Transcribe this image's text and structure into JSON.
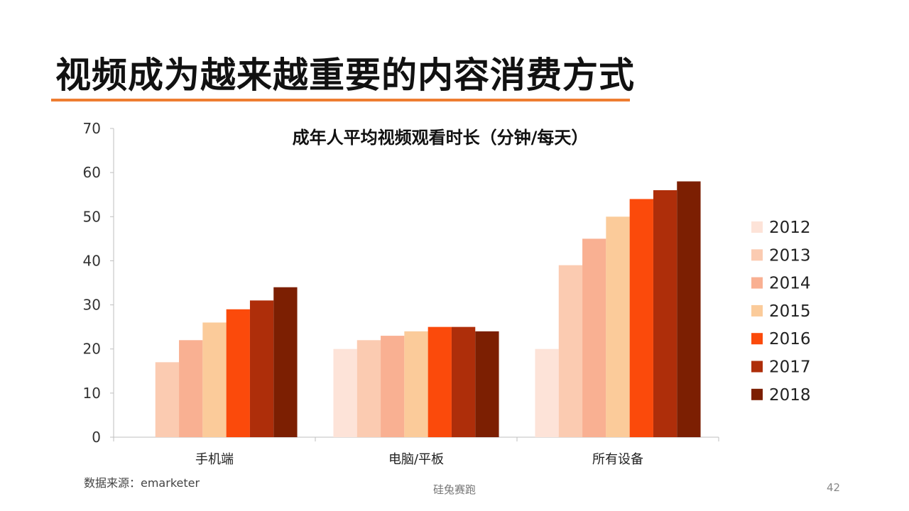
{
  "slide": {
    "title": "视频成为越来越重要的内容消费方式",
    "accent_color": "#ee7d31",
    "source": "数据来源：emarketer",
    "footer": "硅兔赛跑",
    "page_number": "42"
  },
  "chart_data": {
    "type": "bar",
    "title": "成年人平均视频观看时长（分钟/每天）",
    "categories": [
      "手机端",
      "电脑/平板",
      "所有设备"
    ],
    "series": [
      {
        "name": "2012",
        "color": "#fde3d8",
        "values": [
          0,
          20,
          20
        ]
      },
      {
        "name": "2013",
        "color": "#fbcbb1",
        "values": [
          17,
          22,
          39
        ]
      },
      {
        "name": "2014",
        "color": "#f9b092",
        "values": [
          22,
          23,
          45
        ]
      },
      {
        "name": "2015",
        "color": "#fbcb9a",
        "values": [
          26,
          24,
          50
        ]
      },
      {
        "name": "2016",
        "color": "#fb4a0b",
        "values": [
          29,
          25,
          54
        ]
      },
      {
        "name": "2017",
        "color": "#ae2e0a",
        "values": [
          31,
          25,
          56
        ]
      },
      {
        "name": "2018",
        "color": "#7c1f02",
        "values": [
          34,
          24,
          58
        ]
      }
    ],
    "ylim": [
      0,
      70
    ],
    "yticks": [
      "0",
      "10",
      "20",
      "30",
      "40",
      "50",
      "60",
      "70"
    ],
    "xlabel": "",
    "ylabel": "",
    "grid": false,
    "legend": "right"
  }
}
